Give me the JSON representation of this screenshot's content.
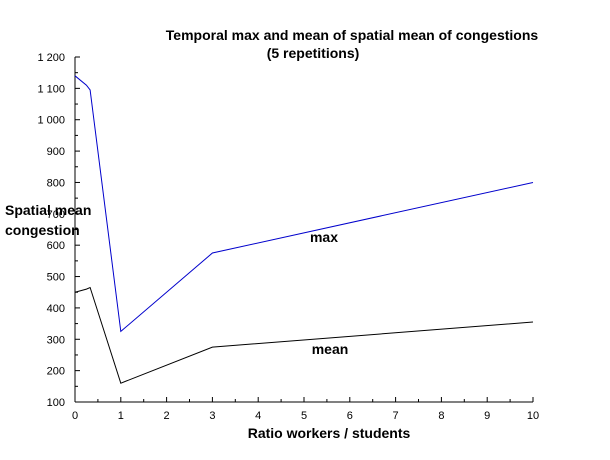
{
  "chart_data": {
    "type": "line",
    "title_line1": "Temporal max and mean of spatial mean of congestions",
    "title_line2": "(5 repetitions)",
    "xlabel": "Ratio workers / students",
    "ylabel_line1": "Spatial mean",
    "ylabel_line2": "congestion",
    "xlim": [
      0,
      10
    ],
    "ylim": [
      100,
      1200
    ],
    "x_ticks": [
      "0",
      "1",
      "2",
      "3",
      "4",
      "5",
      "6",
      "7",
      "8",
      "9",
      "10"
    ],
    "y_ticks": [
      "100",
      "200",
      "300",
      "400",
      "500",
      "600",
      "700",
      "800",
      "900",
      "1 000",
      "1 100",
      "1 200"
    ],
    "grid": false,
    "series": [
      {
        "name": "max",
        "color": "#0000cc",
        "x": [
          0,
          0.25,
          0.33,
          1,
          3,
          10
        ],
        "y": [
          1140,
          1110,
          1095,
          325,
          575,
          800
        ]
      },
      {
        "name": "mean",
        "color": "#000000",
        "x": [
          0,
          0.25,
          0.33,
          1,
          3,
          10
        ],
        "y": [
          450,
          460,
          465,
          160,
          275,
          355
        ]
      }
    ]
  }
}
